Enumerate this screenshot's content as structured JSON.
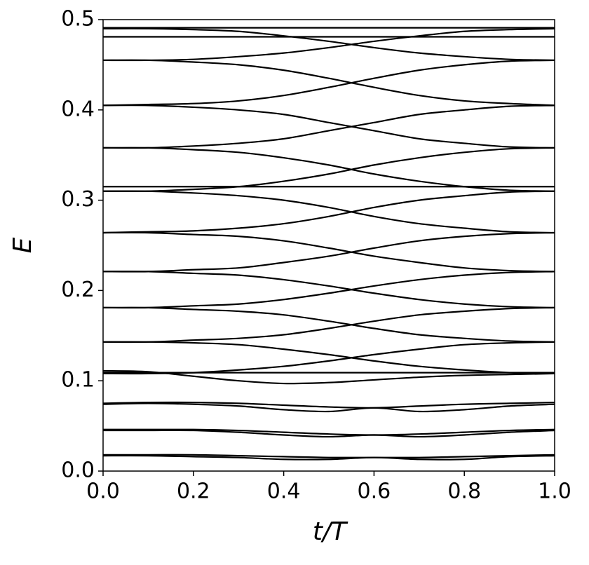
{
  "chart_data": {
    "type": "line",
    "xlabel": "t/T",
    "ylabel": "E",
    "color": "#000000",
    "x": [
      0,
      0.1,
      0.2,
      0.3,
      0.4,
      0.5,
      0.6,
      0.7,
      0.8,
      0.9,
      1.0
    ],
    "xlim": [
      0,
      1
    ],
    "ylim": [
      0,
      0.5
    ],
    "xticks": [
      {
        "value": 0,
        "label": "0.0"
      },
      0.2,
      0.4,
      0.6,
      0.8,
      {
        "value": 1,
        "label": "1.0"
      }
    ],
    "yticks": [
      {
        "value": 0,
        "label": "0.0"
      },
      0.1,
      0.2,
      0.3,
      0.4,
      0.5
    ],
    "series": [
      {
        "values": [
          0.018,
          0.018,
          0.018,
          0.017,
          0.016,
          0.015,
          0.015,
          0.015,
          0.016,
          0.017,
          0.018
        ]
      },
      {
        "values": [
          0.017,
          0.017,
          0.016,
          0.015,
          0.013,
          0.013,
          0.015,
          0.013,
          0.013,
          0.016,
          0.017
        ]
      },
      {
        "values": [
          0.046,
          0.046,
          0.046,
          0.045,
          0.043,
          0.041,
          0.04,
          0.041,
          0.043,
          0.045,
          0.046
        ]
      },
      {
        "values": [
          0.045,
          0.045,
          0.045,
          0.043,
          0.04,
          0.038,
          0.04,
          0.038,
          0.04,
          0.043,
          0.045
        ]
      },
      {
        "values": [
          0.075,
          0.076,
          0.076,
          0.075,
          0.073,
          0.071,
          0.07,
          0.072,
          0.074,
          0.075,
          0.076
        ]
      },
      {
        "values": [
          0.074,
          0.075,
          0.074,
          0.072,
          0.068,
          0.066,
          0.07,
          0.066,
          0.068,
          0.072,
          0.074
        ]
      },
      {
        "values": [
          0.109,
          0.109,
          0.109,
          0.109,
          0.109,
          0.109,
          0.109,
          0.109,
          0.109,
          0.109,
          0.109
        ]
      },
      {
        "values": [
          0.111,
          0.11,
          0.105,
          0.1,
          0.097,
          0.098,
          0.101,
          0.104,
          0.106,
          0.107,
          0.108
        ]
      },
      {
        "values": [
          0.108,
          0.108,
          0.109,
          0.112,
          0.116,
          0.122,
          0.129,
          0.135,
          0.14,
          0.142,
          0.143
        ]
      },
      {
        "values": [
          0.143,
          0.143,
          0.142,
          0.14,
          0.135,
          0.129,
          0.122,
          0.116,
          0.112,
          0.109,
          0.108
        ]
      },
      {
        "values": [
          0.143,
          0.143,
          0.145,
          0.147,
          0.151,
          0.158,
          0.166,
          0.173,
          0.177,
          0.18,
          0.181
        ]
      },
      {
        "values": [
          0.181,
          0.181,
          0.179,
          0.177,
          0.173,
          0.166,
          0.158,
          0.151,
          0.147,
          0.144,
          0.143
        ]
      },
      {
        "values": [
          0.181,
          0.181,
          0.183,
          0.185,
          0.19,
          0.197,
          0.205,
          0.212,
          0.217,
          0.22,
          0.221
        ]
      },
      {
        "values": [
          0.221,
          0.221,
          0.219,
          0.217,
          0.212,
          0.205,
          0.197,
          0.19,
          0.185,
          0.182,
          0.181
        ]
      },
      {
        "values": [
          0.221,
          0.221,
          0.223,
          0.225,
          0.231,
          0.238,
          0.247,
          0.255,
          0.26,
          0.263,
          0.264
        ]
      },
      {
        "values": [
          0.264,
          0.264,
          0.262,
          0.26,
          0.255,
          0.247,
          0.238,
          0.231,
          0.225,
          0.222,
          0.221
        ]
      },
      {
        "values": [
          0.264,
          0.265,
          0.266,
          0.269,
          0.274,
          0.282,
          0.292,
          0.3,
          0.305,
          0.309,
          0.31
        ]
      },
      {
        "values": [
          0.31,
          0.31,
          0.308,
          0.305,
          0.3,
          0.292,
          0.282,
          0.274,
          0.269,
          0.265,
          0.264
        ]
      },
      {
        "values": [
          0.315,
          0.315,
          0.315,
          0.315,
          0.315,
          0.315,
          0.315,
          0.315,
          0.315,
          0.315,
          0.315
        ]
      },
      {
        "values": [
          0.31,
          0.31,
          0.312,
          0.315,
          0.321,
          0.329,
          0.339,
          0.347,
          0.353,
          0.357,
          0.358
        ]
      },
      {
        "values": [
          0.358,
          0.358,
          0.356,
          0.353,
          0.347,
          0.339,
          0.329,
          0.321,
          0.315,
          0.311,
          0.31
        ]
      },
      {
        "values": [
          0.358,
          0.358,
          0.36,
          0.363,
          0.368,
          0.377,
          0.386,
          0.395,
          0.4,
          0.404,
          0.405
        ]
      },
      {
        "values": [
          0.405,
          0.405,
          0.403,
          0.4,
          0.395,
          0.386,
          0.377,
          0.368,
          0.363,
          0.359,
          0.358
        ]
      },
      {
        "values": [
          0.405,
          0.406,
          0.407,
          0.41,
          0.416,
          0.425,
          0.435,
          0.444,
          0.45,
          0.454,
          0.455
        ]
      },
      {
        "values": [
          0.455,
          0.455,
          0.453,
          0.45,
          0.444,
          0.435,
          0.425,
          0.416,
          0.41,
          0.407,
          0.405
        ]
      },
      {
        "values": [
          0.455,
          0.455,
          0.456,
          0.459,
          0.463,
          0.469,
          0.476,
          0.482,
          0.487,
          0.489,
          0.49
        ]
      },
      {
        "values": [
          0.49,
          0.49,
          0.489,
          0.487,
          0.482,
          0.476,
          0.469,
          0.463,
          0.459,
          0.456,
          0.455
        ]
      },
      {
        "values": [
          0.481,
          0.481,
          0.481,
          0.481,
          0.481,
          0.481,
          0.481,
          0.481,
          0.481,
          0.481,
          0.481
        ]
      },
      {
        "values": [
          0.491,
          0.491,
          0.491,
          0.491,
          0.491,
          0.491,
          0.491,
          0.491,
          0.491,
          0.491,
          0.491
        ]
      }
    ]
  }
}
